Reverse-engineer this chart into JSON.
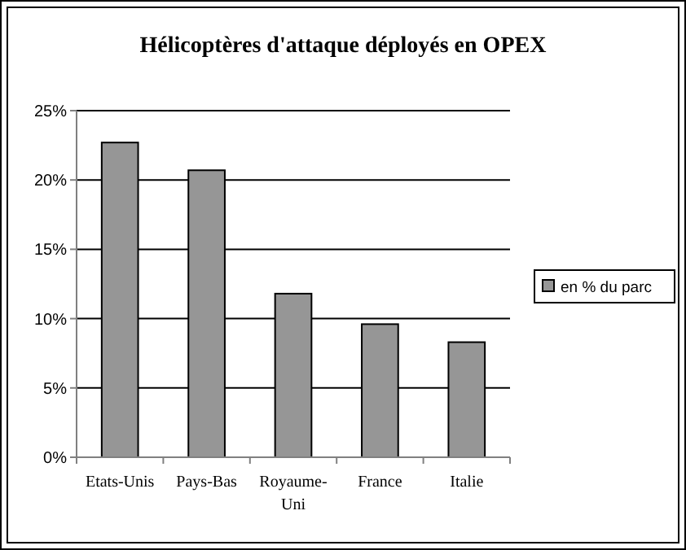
{
  "chart_data": {
    "type": "bar",
    "title": "Hélicoptères d'attaque déployés en OPEX",
    "categories": [
      "Etats-Unis",
      "Pays-Bas",
      "Royaume-Uni",
      "France",
      "Italie"
    ],
    "series": [
      {
        "name": "en % du parc",
        "color": "#969696",
        "values": [
          22.7,
          20.7,
          11.8,
          9.6,
          8.3
        ]
      }
    ],
    "ylim": [
      0,
      25
    ],
    "yticks": [
      {
        "value": 0,
        "label": "0%"
      },
      {
        "value": 5,
        "label": "5%"
      },
      {
        "value": 10,
        "label": "10%"
      },
      {
        "value": 15,
        "label": "15%"
      },
      {
        "value": 20,
        "label": "20%"
      },
      {
        "value": 25,
        "label": "25%"
      }
    ],
    "grid": "y",
    "legend": "right"
  }
}
